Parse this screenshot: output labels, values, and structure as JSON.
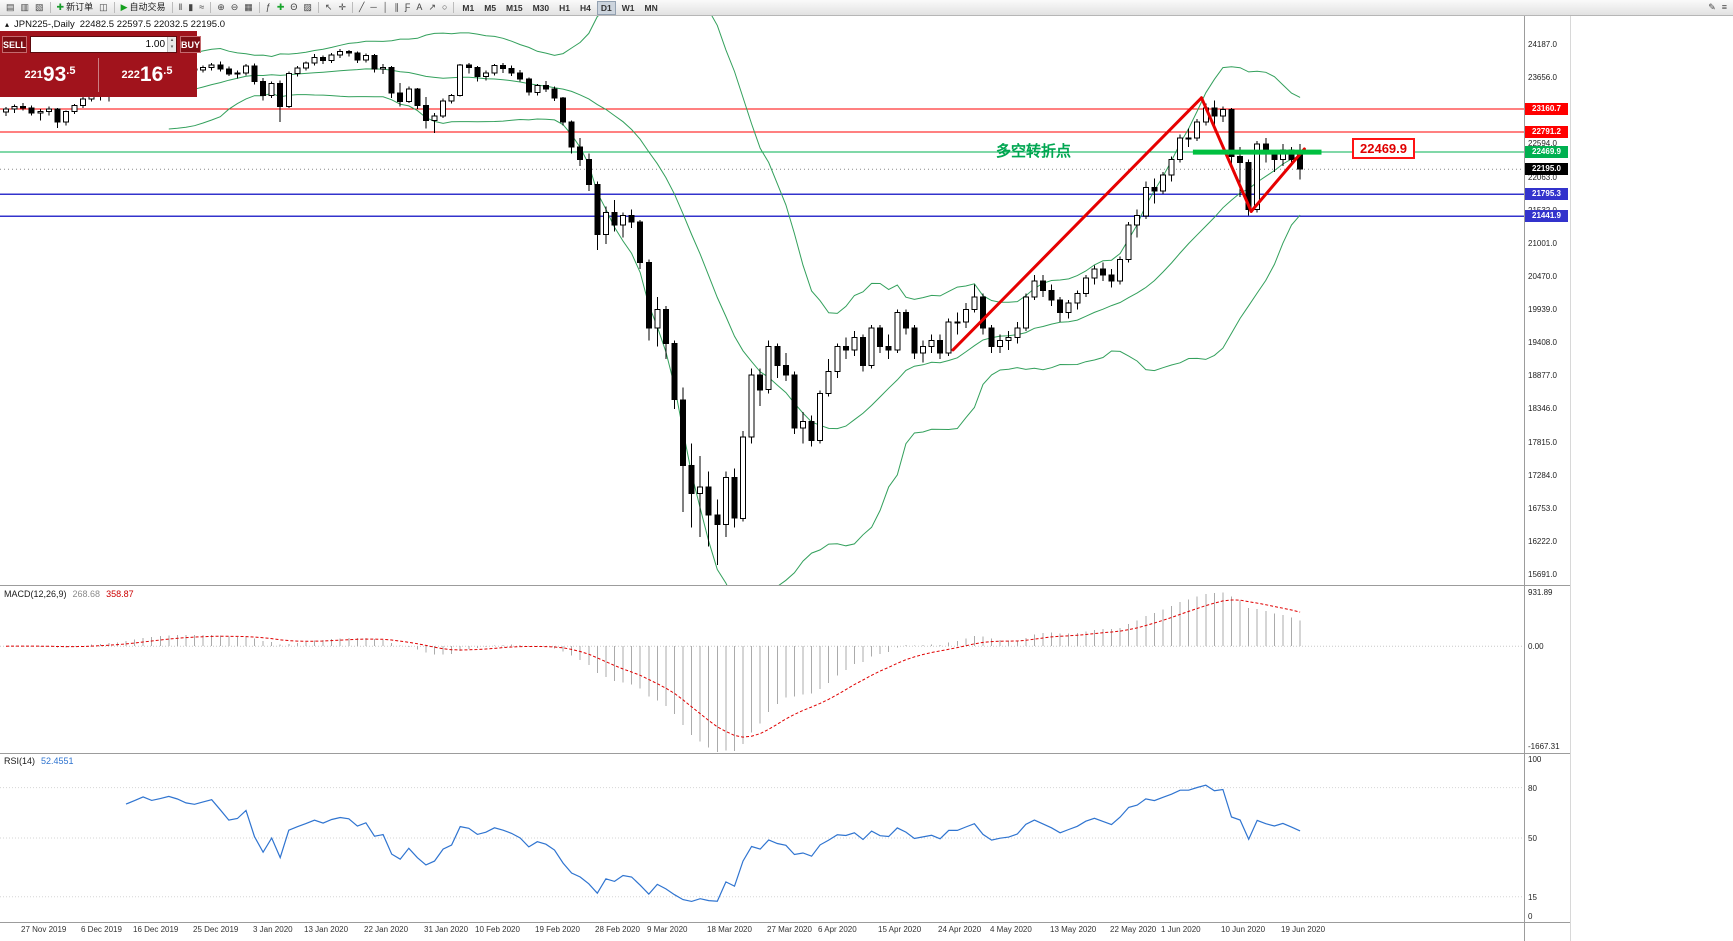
{
  "toolbar": {
    "items": [
      {
        "name": "market-watch-icon",
        "glyph": "▤"
      },
      {
        "name": "data-window-icon",
        "glyph": "▥"
      },
      {
        "name": "navigator-icon",
        "glyph": "▧"
      },
      {
        "sep": true
      },
      {
        "name": "new-order-button",
        "glyph": "✚",
        "color": "#1a9c2e",
        "label": "新订单"
      },
      {
        "name": "chart-windows-icon",
        "glyph": "◫"
      },
      {
        "sep": true
      },
      {
        "name": "auto-trading-button",
        "glyph": "▶",
        "color": "#14a01e",
        "label": "自动交易"
      },
      {
        "sep": true
      },
      {
        "name": "bars-chart-icon",
        "glyph": "‖"
      },
      {
        "name": "candles-chart-icon",
        "glyph": "▮"
      },
      {
        "name": "line-chart-icon",
        "glyph": "≈"
      },
      {
        "sep": true
      },
      {
        "name": "zoom-in-icon",
        "glyph": "⊕"
      },
      {
        "name": "zoom-out-icon",
        "glyph": "⊖"
      },
      {
        "name": "tile-windows-icon",
        "glyph": "▦"
      },
      {
        "sep": true
      },
      {
        "name": "indicators-icon",
        "glyph": "ƒ"
      },
      {
        "name": "add-indicator-icon",
        "glyph": "✚",
        "color": "#18a52c"
      },
      {
        "name": "periods-icon",
        "glyph": "Θ"
      },
      {
        "name": "templates-icon",
        "glyph": "▨"
      },
      {
        "sep": true
      },
      {
        "name": "cursor-icon",
        "glyph": "↖"
      },
      {
        "name": "crosshair-icon",
        "glyph": "✛"
      },
      {
        "sep": true
      },
      {
        "name": "trendline-icon",
        "glyph": "╱"
      },
      {
        "name": "horizontal-line-icon",
        "glyph": "─"
      },
      {
        "name": "vertical-line-icon",
        "glyph": "│"
      },
      {
        "name": "channel-icon",
        "glyph": "∥"
      },
      {
        "name": "fibonacci-icon",
        "glyph": "Ƒ"
      },
      {
        "name": "text-icon",
        "glyph": "A"
      },
      {
        "name": "arrow-icon",
        "glyph": "↗"
      },
      {
        "name": "shapes-icon",
        "glyph": "○"
      },
      {
        "sep": true
      }
    ],
    "timeframes": [
      "M1",
      "M5",
      "M15",
      "M30",
      "H1",
      "H4",
      "D1",
      "W1",
      "MN"
    ],
    "active_timeframe": "D1",
    "right_items": [
      {
        "name": "edit-tool-icon",
        "glyph": "✎"
      },
      {
        "name": "menu-icon",
        "glyph": "≡"
      }
    ]
  },
  "chart_header": {
    "icon": "▴",
    "symbol": "JPN225-,Daily",
    "ohlc": "22482.5 22597.5 22032.5 22195.0"
  },
  "trade_panel": {
    "sell_label": "SELL",
    "buy_label": "BUY",
    "volume": "1.00",
    "sell_price": "22193.5",
    "buy_price": "22216.5",
    "spinner_up": "▴",
    "spinner_down": "▾"
  },
  "annotations": {
    "turning_point_label": "多空转折点",
    "price_callout": "22469.9"
  },
  "chart_data": {
    "type": "candlestick",
    "symbol": "JPN225",
    "timeframe": "Daily",
    "current_bar_ohlc": {
      "open": 22482.5,
      "high": 22597.5,
      "low": 22032.5,
      "close": 22195.0
    },
    "current_price": 22195.0,
    "y_range": [
      15691.0,
      24187.0
    ],
    "y_ticks": [
      24187.0,
      23656.0,
      23125.0,
      22594.0,
      22063.0,
      21532.0,
      21001.0,
      20470.0,
      19939.0,
      19408.0,
      18877.0,
      18346.0,
      17815.0,
      17284.0,
      16753.0,
      16222.0,
      15691.0
    ],
    "date_labels": [
      {
        "t": "27 Nov 2019",
        "i": 2
      },
      {
        "t": "6 Dec 2019",
        "i": 9
      },
      {
        "t": "16 Dec 2019",
        "i": 15
      },
      {
        "t": "25 Dec 2019",
        "i": 22
      },
      {
        "t": "3 Jan 2020",
        "i": 29
      },
      {
        "t": "13 Jan 2020",
        "i": 35
      },
      {
        "t": "22 Jan 2020",
        "i": 42
      },
      {
        "t": "31 Jan 2020",
        "i": 49
      },
      {
        "t": "10 Feb 2020",
        "i": 55
      },
      {
        "t": "19 Feb 2020",
        "i": 62
      },
      {
        "t": "28 Feb 2020",
        "i": 69
      },
      {
        "t": "9 Mar 2020",
        "i": 75
      },
      {
        "t": "18 Mar 2020",
        "i": 82
      },
      {
        "t": "27 Mar 2020",
        "i": 89
      },
      {
        "t": "6 Apr 2020",
        "i": 95
      },
      {
        "t": "15 Apr 2020",
        "i": 102
      },
      {
        "t": "24 Apr 2020",
        "i": 109
      },
      {
        "t": "4 May 2020",
        "i": 115
      },
      {
        "t": "13 May 2020",
        "i": 122
      },
      {
        "t": "22 May 2020",
        "i": 129
      },
      {
        "t": "1 Jun 2020",
        "i": 135
      },
      {
        "t": "10 Jun 2020",
        "i": 142
      },
      {
        "t": "19 Jun 2020",
        "i": 149
      }
    ],
    "candles": [
      [
        23110,
        23190,
        23050,
        23160
      ],
      [
        23160,
        23230,
        23100,
        23200
      ],
      [
        23200,
        23260,
        23140,
        23180
      ],
      [
        23180,
        23220,
        23060,
        23100
      ],
      [
        23100,
        23160,
        22980,
        23120
      ],
      [
        23120,
        23200,
        23060,
        23160
      ],
      [
        23160,
        23180,
        22860,
        22950
      ],
      [
        22950,
        23140,
        22900,
        23120
      ],
      [
        23120,
        23240,
        23080,
        23220
      ],
      [
        23220,
        23350,
        23180,
        23320
      ],
      [
        23320,
        23420,
        23280,
        23390
      ],
      [
        23390,
        23440,
        23300,
        23360
      ],
      [
        23360,
        23420,
        23280,
        23400
      ],
      [
        23400,
        23500,
        23360,
        23480
      ],
      [
        23480,
        23650,
        23440,
        23620
      ],
      [
        23620,
        23720,
        23560,
        23700
      ],
      [
        23700,
        23810,
        23650,
        23790
      ],
      [
        23790,
        23850,
        23700,
        23760
      ],
      [
        23760,
        23830,
        23680,
        23800
      ],
      [
        23800,
        23880,
        23740,
        23850
      ],
      [
        23850,
        23900,
        23770,
        23830
      ],
      [
        23830,
        23870,
        23760,
        23800
      ],
      [
        23800,
        23840,
        23740,
        23790
      ],
      [
        23790,
        23860,
        23750,
        23830
      ],
      [
        23830,
        23900,
        23780,
        23870
      ],
      [
        23870,
        23920,
        23760,
        23800
      ],
      [
        23800,
        23840,
        23690,
        23720
      ],
      [
        23720,
        23780,
        23650,
        23740
      ],
      [
        23740,
        23880,
        23700,
        23850
      ],
      [
        23850,
        23890,
        23550,
        23600
      ],
      [
        23600,
        23660,
        23300,
        23380
      ],
      [
        23380,
        23600,
        23340,
        23570
      ],
      [
        23570,
        23620,
        22950,
        23200
      ],
      [
        23200,
        23760,
        23180,
        23730
      ],
      [
        23730,
        23850,
        23680,
        23820
      ],
      [
        23820,
        23920,
        23780,
        23900
      ],
      [
        23900,
        24040,
        23860,
        23990
      ],
      [
        23990,
        24020,
        23880,
        23940
      ],
      [
        23940,
        24060,
        23900,
        24030
      ],
      [
        24030,
        24120,
        23980,
        24080
      ],
      [
        24080,
        24110,
        24000,
        24060
      ],
      [
        24060,
        24080,
        23900,
        23950
      ],
      [
        23950,
        24050,
        23910,
        24020
      ],
      [
        24020,
        24040,
        23750,
        23800
      ],
      [
        23800,
        23880,
        23720,
        23830
      ],
      [
        23830,
        23850,
        23340,
        23420
      ],
      [
        23420,
        23580,
        23200,
        23280
      ],
      [
        23280,
        23520,
        23260,
        23480
      ],
      [
        23480,
        23500,
        23160,
        23220
      ],
      [
        23220,
        23350,
        22850,
        22980
      ],
      [
        22980,
        23100,
        22780,
        23050
      ],
      [
        23050,
        23330,
        23020,
        23290
      ],
      [
        23290,
        23400,
        23250,
        23380
      ],
      [
        23380,
        23880,
        23360,
        23870
      ],
      [
        23870,
        23900,
        23730,
        23830
      ],
      [
        23830,
        23850,
        23600,
        23680
      ],
      [
        23680,
        23780,
        23620,
        23740
      ],
      [
        23740,
        23880,
        23700,
        23860
      ],
      [
        23860,
        23900,
        23740,
        23810
      ],
      [
        23810,
        23860,
        23690,
        23740
      ],
      [
        23740,
        23790,
        23600,
        23640
      ],
      [
        23640,
        23670,
        23380,
        23430
      ],
      [
        23430,
        23560,
        23380,
        23540
      ],
      [
        23540,
        23610,
        23430,
        23480
      ],
      [
        23480,
        23520,
        23290,
        23340
      ],
      [
        23340,
        23350,
        22900,
        22950
      ],
      [
        22950,
        22980,
        22450,
        22550
      ],
      [
        22550,
        22700,
        22250,
        22350
      ],
      [
        22350,
        22450,
        21850,
        21950
      ],
      [
        21950,
        22000,
        20900,
        21150
      ],
      [
        21150,
        21600,
        21000,
        21500
      ],
      [
        21500,
        21700,
        21200,
        21300
      ],
      [
        21300,
        21500,
        21100,
        21450
      ],
      [
        21450,
        21550,
        21250,
        21350
      ],
      [
        21350,
        21380,
        20600,
        20700
      ],
      [
        20700,
        20750,
        19450,
        19650
      ],
      [
        19650,
        20150,
        19350,
        19950
      ],
      [
        19950,
        20000,
        19150,
        19400
      ],
      [
        19400,
        19450,
        18350,
        18500
      ],
      [
        18500,
        18700,
        16700,
        17450
      ],
      [
        17450,
        17800,
        16450,
        17000
      ],
      [
        17000,
        17600,
        16300,
        17100
      ],
      [
        17100,
        17350,
        16150,
        16650
      ],
      [
        16650,
        16900,
        15850,
        16500
      ],
      [
        16500,
        17350,
        16300,
        17250
      ],
      [
        17250,
        17400,
        16450,
        16600
      ],
      [
        16600,
        18000,
        16550,
        17900
      ],
      [
        17900,
        19000,
        17800,
        18900
      ],
      [
        18900,
        19000,
        18400,
        18660
      ],
      [
        18660,
        19450,
        18600,
        19350
      ],
      [
        19350,
        19400,
        18850,
        19050
      ],
      [
        19050,
        19250,
        18800,
        18900
      ],
      [
        18900,
        18950,
        17950,
        18050
      ],
      [
        18050,
        18300,
        17800,
        18150
      ],
      [
        18150,
        18250,
        17750,
        17850
      ],
      [
        17850,
        18650,
        17800,
        18600
      ],
      [
        18600,
        19150,
        18550,
        18950
      ],
      [
        18950,
        19400,
        18850,
        19350
      ],
      [
        19350,
        19500,
        19150,
        19300
      ],
      [
        19300,
        19600,
        19200,
        19500
      ],
      [
        19500,
        19550,
        18950,
        19050
      ],
      [
        19050,
        19700,
        19000,
        19650
      ],
      [
        19650,
        19700,
        19250,
        19350
      ],
      [
        19350,
        19550,
        19150,
        19300
      ],
      [
        19300,
        19950,
        19250,
        19900
      ],
      [
        19900,
        19950,
        19550,
        19650
      ],
      [
        19650,
        19700,
        19150,
        19250
      ],
      [
        19250,
        19450,
        19100,
        19350
      ],
      [
        19350,
        19550,
        19250,
        19450
      ],
      [
        19450,
        19550,
        19150,
        19250
      ],
      [
        19250,
        19800,
        19200,
        19750
      ],
      [
        19750,
        19900,
        19550,
        19750
      ],
      [
        19750,
        20050,
        19650,
        19950
      ],
      [
        19950,
        20350,
        19900,
        20150
      ],
      [
        20150,
        20200,
        19550,
        19650
      ],
      [
        19650,
        19700,
        19250,
        19350
      ],
      [
        19350,
        19550,
        19250,
        19450
      ],
      [
        19450,
        19600,
        19300,
        19500
      ],
      [
        19500,
        19750,
        19400,
        19650
      ],
      [
        19650,
        20200,
        19600,
        20150
      ],
      [
        20150,
        20500,
        20100,
        20400
      ],
      [
        20400,
        20500,
        20150,
        20250
      ],
      [
        20250,
        20350,
        20000,
        20100
      ],
      [
        20100,
        20150,
        19750,
        19900
      ],
      [
        19900,
        20100,
        19800,
        20050
      ],
      [
        20050,
        20250,
        19950,
        20200
      ],
      [
        20200,
        20500,
        20150,
        20450
      ],
      [
        20450,
        20650,
        20350,
        20600
      ],
      [
        20600,
        20700,
        20400,
        20500
      ],
      [
        20500,
        20600,
        20300,
        20400
      ],
      [
        20400,
        20800,
        20350,
        20750
      ],
      [
        20750,
        21350,
        20700,
        21300
      ],
      [
        21300,
        21550,
        21100,
        21450
      ],
      [
        21450,
        22000,
        21400,
        21900
      ],
      [
        21900,
        22050,
        21650,
        21850
      ],
      [
        21850,
        22150,
        21800,
        22100
      ],
      [
        22100,
        22400,
        22000,
        22350
      ],
      [
        22350,
        22750,
        22300,
        22700
      ],
      [
        22700,
        22850,
        22550,
        22700
      ],
      [
        22700,
        23000,
        22650,
        22950
      ],
      [
        22950,
        23250,
        22900,
        23180
      ],
      [
        23180,
        23300,
        22900,
        23050
      ],
      [
        23050,
        23200,
        22950,
        23150
      ],
      [
        23150,
        23180,
        22250,
        22400
      ],
      [
        22400,
        22550,
        21750,
        22300
      ],
      [
        22300,
        22350,
        21450,
        21550
      ],
      [
        21550,
        22650,
        21500,
        22600
      ],
      [
        22600,
        22700,
        22300,
        22450
      ],
      [
        22450,
        22500,
        22150,
        22350
      ],
      [
        22350,
        22600,
        22250,
        22500
      ],
      [
        22500,
        22550,
        22250,
        22350
      ],
      [
        22482.5,
        22597.5,
        22032.5,
        22195.0
      ]
    ],
    "overlays": {
      "bollinger": {
        "period": 20,
        "deviation": 2,
        "color": "#33a05c"
      },
      "levels": [
        {
          "price": 23160.7,
          "color": "#ff0000",
          "width": 1.2
        },
        {
          "price": 22791.2,
          "color": "#ff0000",
          "width": 1.2
        },
        {
          "price": 22469.9,
          "color": "#00b050",
          "width": 1.2
        },
        {
          "price": 21795.3,
          "color": "#3333cc",
          "width": 1.5
        },
        {
          "price": 21441.9,
          "color": "#3333cc",
          "width": 1.5
        }
      ],
      "trendlines": [
        {
          "i1": 110.5,
          "p1": 19300,
          "i2": 139.5,
          "p2": 23340,
          "color": "#e60000",
          "width": 3
        },
        {
          "i1": 139.5,
          "p1": 23340,
          "i2": 145.3,
          "p2": 21520,
          "color": "#e60000",
          "width": 3
        },
        {
          "i1": 145.3,
          "p1": 21520,
          "i2": 151.5,
          "p2": 22520,
          "color": "#e60000",
          "width": 3
        }
      ],
      "support_segment": {
        "i1": 138.5,
        "i2": 153.5,
        "price": 22469.9,
        "color": "#00c040",
        "width": 5
      }
    },
    "indicators": {
      "macd": {
        "label": "MACD(12,26,9)",
        "fast": 12,
        "slow": 26,
        "signal": 9,
        "value": "268.68",
        "signal_value": "358.87",
        "scale_labels": [
          "931.89",
          "0.00",
          "-1667.31"
        ],
        "scale_max": 931.89,
        "scale_min": -1667.31,
        "histogram_color": "#ababab",
        "signal_color": "#e00000"
      },
      "rsi": {
        "label": "RSI(14)",
        "period": 14,
        "value": "52.4551",
        "scale_labels": [
          100,
          80,
          50,
          15,
          0
        ],
        "levels": [
          80,
          50,
          15
        ],
        "color": "#2f74d0"
      }
    }
  }
}
